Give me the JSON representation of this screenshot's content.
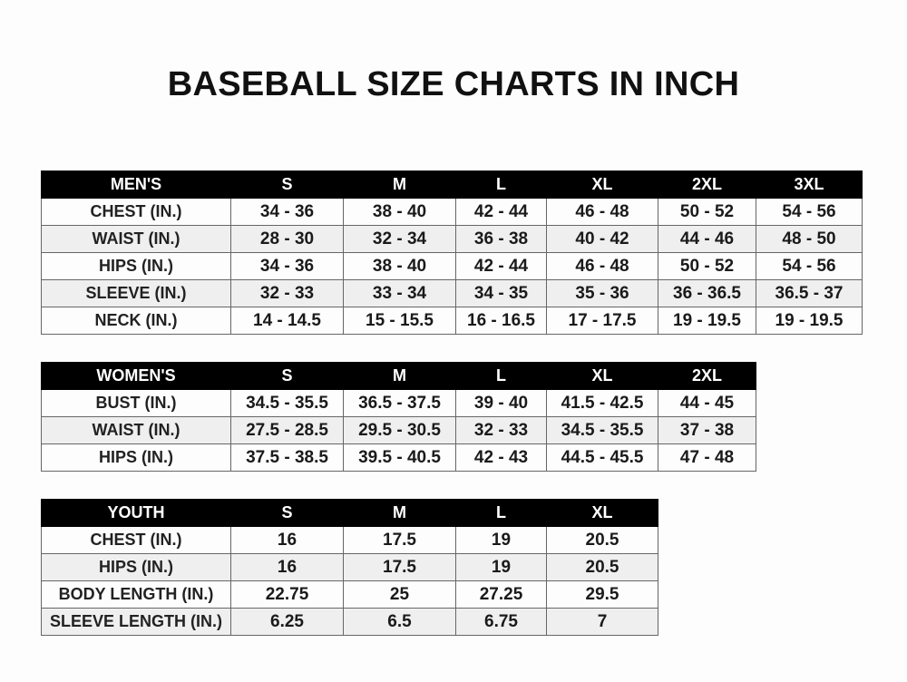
{
  "title": "BASEBALL SIZE CHARTS IN INCH",
  "tables": [
    {
      "id": "men",
      "headers": [
        "MEN'S",
        "S",
        "M",
        "L",
        "XL",
        "2XL",
        "3XL"
      ],
      "rows": [
        [
          "CHEST (IN.)",
          "34 - 36",
          "38 - 40",
          "42 - 44",
          "46 - 48",
          "50 - 52",
          "54 - 56"
        ],
        [
          "WAIST (IN.)",
          "28 - 30",
          "32 - 34",
          "36 - 38",
          "40 - 42",
          "44 - 46",
          "48 - 50"
        ],
        [
          "HIPS (IN.)",
          "34 - 36",
          "38 - 40",
          "42 - 44",
          "46 - 48",
          "50 - 52",
          "54 - 56"
        ],
        [
          "SLEEVE (IN.)",
          "32 - 33",
          "33 - 34",
          "34 - 35",
          "35 - 36",
          "36 - 36.5",
          "36.5 - 37"
        ],
        [
          "NECK (IN.)",
          "14 - 14.5",
          "15 - 15.5",
          "16 - 16.5",
          "17 - 17.5",
          "19 - 19.5",
          "19 - 19.5"
        ]
      ]
    },
    {
      "id": "women",
      "headers": [
        "WOMEN'S",
        "S",
        "M",
        "L",
        "XL",
        "2XL"
      ],
      "rows": [
        [
          "BUST (IN.)",
          "34.5 - 35.5",
          "36.5 - 37.5",
          "39 - 40",
          "41.5 - 42.5",
          "44 - 45"
        ],
        [
          "WAIST (IN.)",
          "27.5 - 28.5",
          "29.5 - 30.5",
          "32 - 33",
          "34.5 - 35.5",
          "37 - 38"
        ],
        [
          "HIPS (IN.)",
          "37.5 - 38.5",
          "39.5 - 40.5",
          "42 - 43",
          "44.5 - 45.5",
          "47 - 48"
        ]
      ]
    },
    {
      "id": "youth",
      "headers": [
        "YOUTH",
        "S",
        "M",
        "L",
        "XL"
      ],
      "rows": [
        [
          "CHEST (IN.)",
          "16",
          "17.5",
          "19",
          "20.5"
        ],
        [
          "HIPS (IN.)",
          "16",
          "17.5",
          "19",
          "20.5"
        ],
        [
          "BODY LENGTH (IN.)",
          "22.75",
          "25",
          "27.25",
          "29.5"
        ],
        [
          "SLEEVE LENGTH (IN.)",
          "6.25",
          "6.5",
          "6.75",
          "7"
        ]
      ]
    }
  ]
}
